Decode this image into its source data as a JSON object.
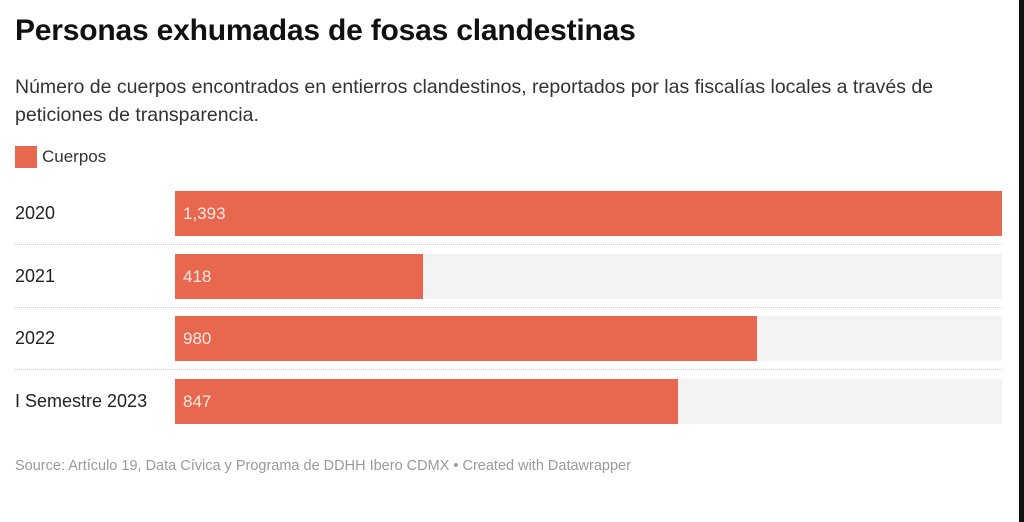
{
  "chart_data": {
    "type": "bar",
    "orientation": "horizontal",
    "title": "Personas exhumadas de fosas clandestinas",
    "subtitle": "Número de cuerpos encontrados en entierros clandestinos, reportados por las fiscalías locales a través de peticiones de transparencia.",
    "legend": [
      {
        "name": "Cuerpos",
        "color": "#e8674f"
      }
    ],
    "legend_position": "top-left",
    "categories": [
      "2020",
      "2021",
      "2022",
      "I Semestre 2023"
    ],
    "values": [
      1393,
      418,
      980,
      847
    ],
    "value_labels": [
      "1,393",
      "418",
      "980",
      "847"
    ],
    "xlim": [
      0,
      1393
    ],
    "grid": false,
    "source": "Source: Artículo 19, Data Cívica y Programa de DDHH Ibero CDMX • Created with Datawrapper",
    "colors": {
      "bar": "#e8674f",
      "track": "#f3f3f3"
    }
  }
}
